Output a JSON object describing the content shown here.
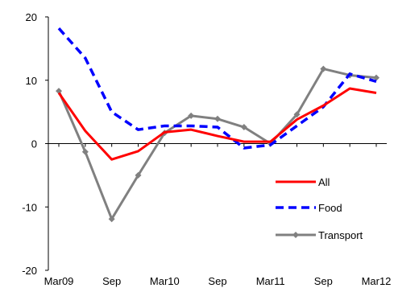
{
  "chart_data": {
    "type": "line",
    "title": "",
    "xlabel": "",
    "ylabel": "",
    "ylim": [
      -20,
      20
    ],
    "yticks": [
      20,
      10,
      0,
      -10,
      -20
    ],
    "x_tick_labels": [
      "Mar09",
      "Sep",
      "Mar10",
      "Sep",
      "Mar11",
      "Sep",
      "Mar12"
    ],
    "x_points": [
      "Mar09",
      "Jun09",
      "Sep09",
      "Dec09",
      "Mar10",
      "Jun10",
      "Sep10",
      "Dec10",
      "Mar11",
      "Jun11",
      "Sep11",
      "Dec11",
      "Mar12"
    ],
    "grid": false,
    "legend_position": "lower-right",
    "series": [
      {
        "name": "All",
        "color": "#ff0000",
        "style": "solid",
        "marker": "none",
        "values": [
          8.0,
          2.0,
          -2.5,
          -1.2,
          1.8,
          2.2,
          1.2,
          0.3,
          0.3,
          3.8,
          6.0,
          8.7,
          8.0
        ]
      },
      {
        "name": "Food",
        "color": "#0000ff",
        "style": "dashed",
        "marker": "none",
        "values": [
          18.2,
          13.5,
          5.0,
          2.2,
          2.8,
          2.8,
          2.6,
          -0.7,
          -0.2,
          2.8,
          5.8,
          11.0,
          9.8
        ]
      },
      {
        "name": "Transport",
        "color": "#808080",
        "style": "solid",
        "marker": "diamond",
        "values": [
          8.3,
          -1.3,
          -11.9,
          -5.0,
          1.7,
          4.4,
          3.9,
          2.6,
          0.0,
          4.6,
          11.8,
          10.8,
          10.4
        ]
      }
    ]
  }
}
